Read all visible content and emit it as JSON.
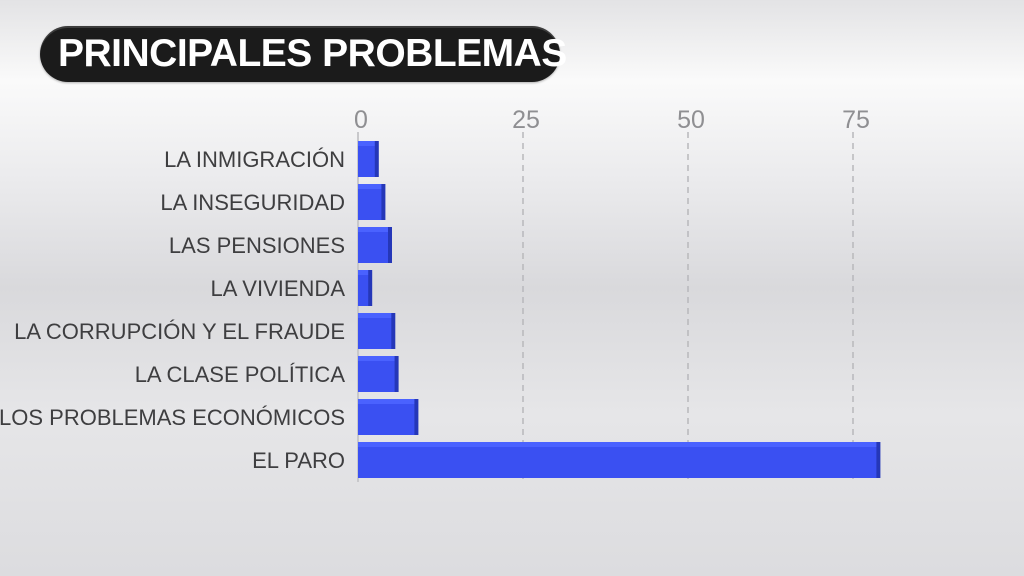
{
  "title": "PRINCIPALES PROBLEMAS",
  "colors": {
    "bar_face": "#3a50f2",
    "bar_top": "#4a62ff",
    "bar_end": "#2537b8",
    "label": "#3e3e40",
    "tick": "#8f8f92",
    "grid": "#b8b8bb",
    "axis": "#c8c8cb",
    "title_bg": "#1b1b1b",
    "title_text": "#ffffff"
  },
  "chart_data": {
    "type": "bar",
    "orientation": "horizontal",
    "title": "PRINCIPALES PROBLEMAS",
    "categories": [
      "LA INMIGRACIÓN",
      "LA INSEGURIDAD",
      "LAS PENSIONES",
      "LA VIVIENDA",
      "LA CORRUPCIÓN Y EL FRAUDE",
      "LA CLASE POLÍTICA",
      "LOS PROBLEMAS ECONÓMICOS",
      "EL PARO"
    ],
    "values": [
      3,
      4,
      5,
      2,
      5.5,
      6,
      9,
      79
    ],
    "xlim": [
      0,
      79
    ],
    "xticks": [
      0,
      25,
      50,
      75
    ],
    "xtick_labels": [
      "0",
      "25",
      "50",
      "75"
    ],
    "grid": true,
    "legend": "none"
  }
}
